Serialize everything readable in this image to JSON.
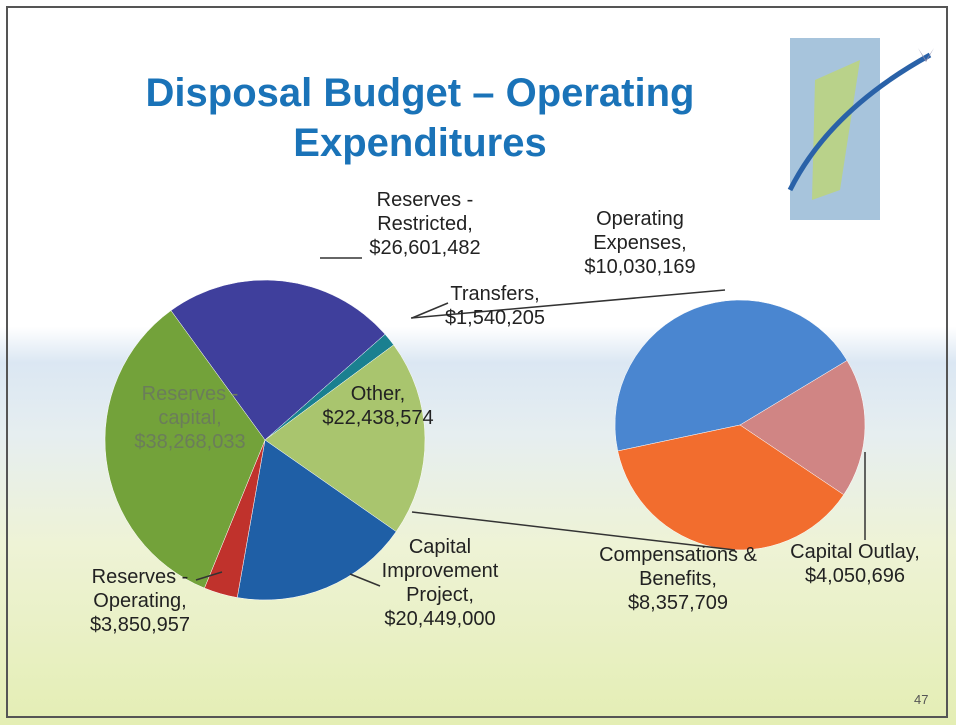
{
  "chart_data": [
    {
      "type": "pie",
      "title": "Disposal Budget – Operating Expenditures",
      "categories": [
        "Reserves - Restricted,",
        "Transfers,",
        "Other,",
        "Capital Improvement Project,",
        "Reserves - Operating,",
        "Reserves - capital,"
      ],
      "values": [
        26601482,
        1540205,
        22438574,
        20449000,
        3850957,
        38268033
      ],
      "value_labels": [
        "$26,601,482",
        "$1,540,205",
        "$22,438,574",
        "$20,449,000",
        "$3,850,957",
        "$38,268,033"
      ],
      "colors": [
        "#3f3f9c",
        "#1a8090",
        "#a9c56e",
        "#1f5fa6",
        "#c0322c",
        "#73a23a"
      ]
    },
    {
      "type": "pie",
      "categories": [
        "Operating Expenses,",
        "Capital Outlay,",
        "Compensations & Benefits,"
      ],
      "values": [
        10030169,
        4050696,
        8357709
      ],
      "value_labels": [
        "$10,030,169",
        "$4,050,696",
        "$8,357,709"
      ],
      "colors": [
        "#4a86d0",
        "#d08584",
        "#f26d2e"
      ]
    }
  ],
  "page_number": "47"
}
